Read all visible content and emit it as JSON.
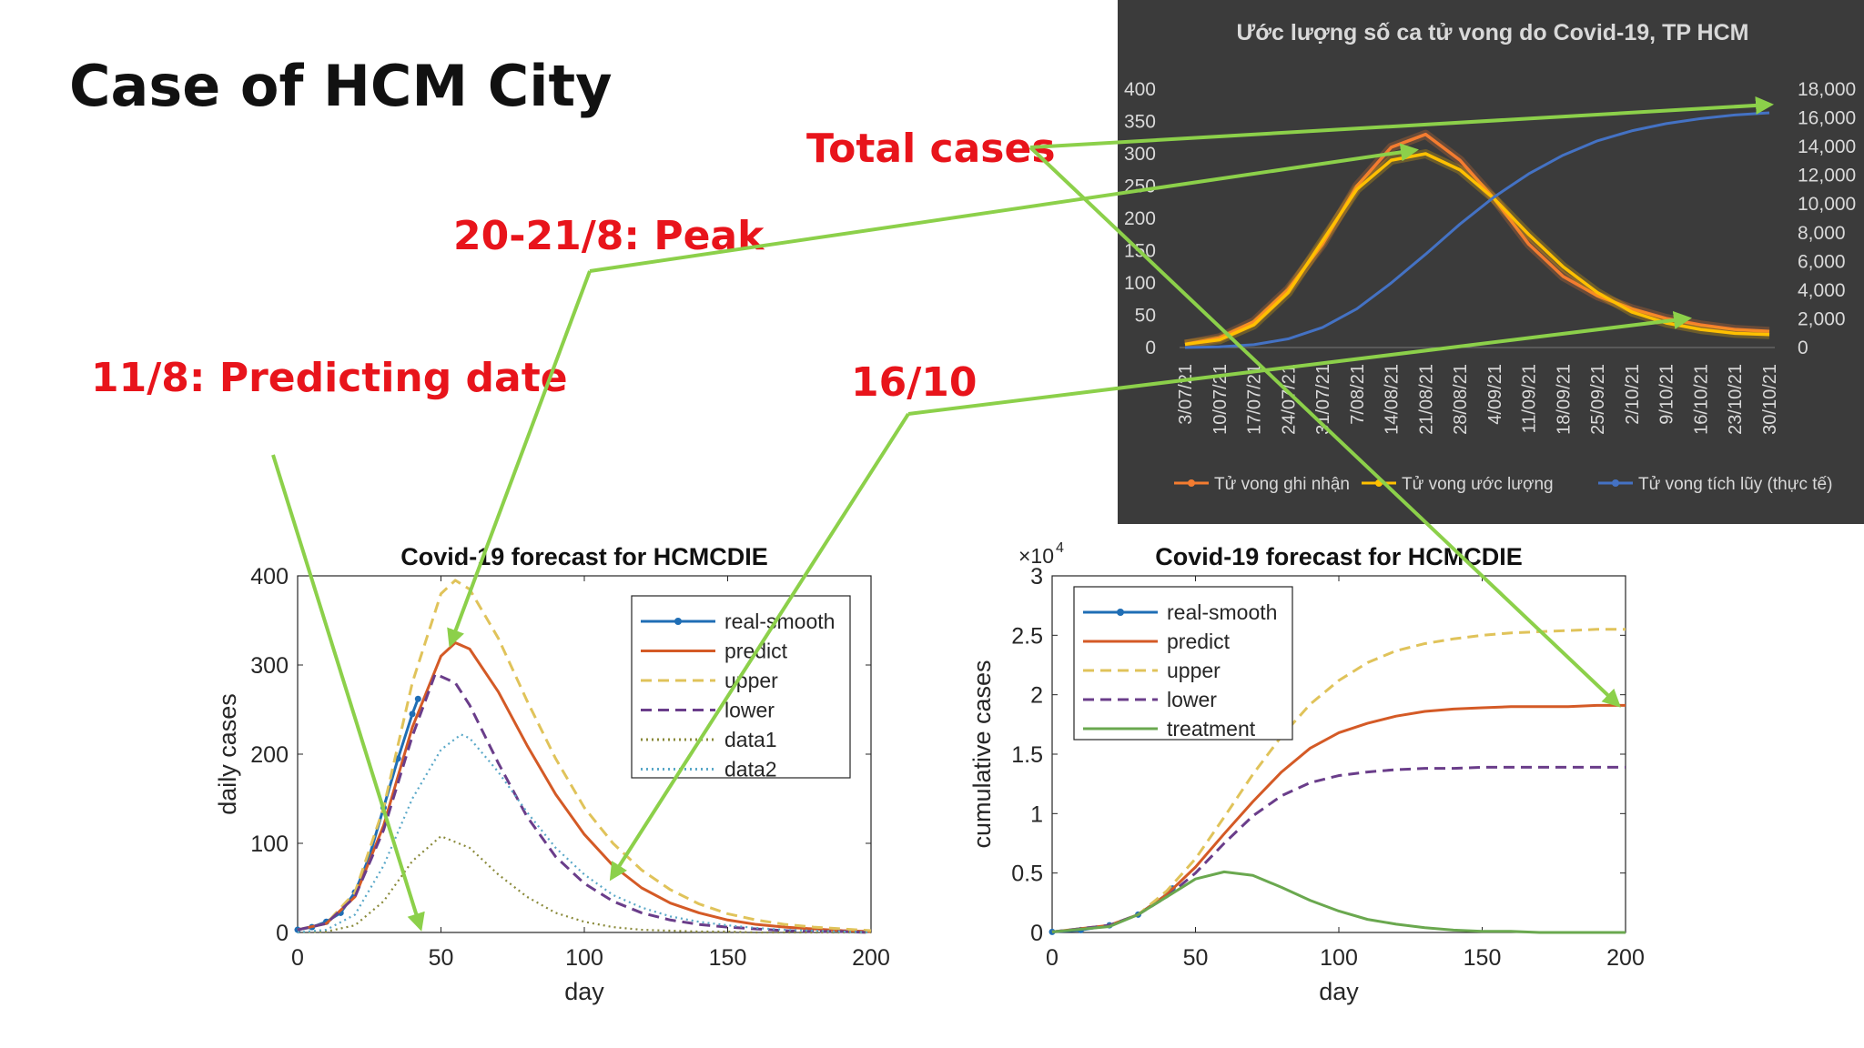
{
  "slide": {
    "title": "Case of HCM City",
    "annotations": {
      "total_cases": "Total cases",
      "peak": "20-21/8: Peak",
      "predicting_date": "11/8: Predicting date",
      "date_1610": "16/10"
    },
    "arrow_color": "#8cd04a",
    "label_color": "#e8141b"
  },
  "chart_data": [
    {
      "type": "line",
      "title": "Ước lượng số ca tử vong do Covid-19, TP HCM",
      "background": "#3b3b3b",
      "categories": [
        "3/07/21",
        "10/07/21",
        "17/07/21",
        "24/07/21",
        "31/07/21",
        "7/08/21",
        "14/08/21",
        "21/08/21",
        "28/08/21",
        "4/09/21",
        "11/09/21",
        "18/09/21",
        "25/09/21",
        "2/10/21",
        "9/10/21",
        "16/10/21",
        "23/10/21",
        "30/10/21"
      ],
      "y_left": {
        "ticks": [
          "400",
          "350",
          "300",
          "250",
          "200",
          "150",
          "100",
          "50",
          "0"
        ],
        "ylim": [
          0,
          400
        ]
      },
      "y_right": {
        "ticks": [
          "18,000",
          "16,000",
          "14,000",
          "12,000",
          "10,000",
          "8,000",
          "6,000",
          "4,000",
          "2,000",
          "0"
        ],
        "ylim": [
          0,
          18000
        ]
      },
      "series": [
        {
          "name": "Tử vong ghi nhận",
          "color": "#f47c30",
          "axis": "left",
          "values": [
            5,
            15,
            40,
            90,
            160,
            250,
            310,
            330,
            290,
            230,
            160,
            110,
            80,
            60,
            45,
            35,
            28,
            25
          ]
        },
        {
          "name": "Tử vong ước lượng",
          "color": "#ffc000",
          "axis": "left",
          "values": [
            5,
            12,
            35,
            85,
            165,
            245,
            290,
            300,
            275,
            230,
            175,
            125,
            85,
            55,
            38,
            28,
            22,
            20
          ]
        },
        {
          "name": "Tử vong tích lũy (thực tế)",
          "color": "#4472c4",
          "axis": "right",
          "values": [
            0,
            50,
            200,
            600,
            1400,
            2700,
            4500,
            6500,
            8600,
            10500,
            12100,
            13400,
            14400,
            15100,
            15600,
            15950,
            16200,
            16350
          ]
        }
      ],
      "legend": "bottom"
    },
    {
      "type": "line",
      "title": "Covid-19 forecast for HCMCDIE",
      "xlabel": "day",
      "ylabel": "daily cases",
      "xlim": [
        0,
        200
      ],
      "ylim": [
        0,
        400
      ],
      "x_ticks": [
        "0",
        "50",
        "100",
        "150",
        "200"
      ],
      "y_ticks": [
        "0",
        "100",
        "200",
        "300",
        "400"
      ],
      "series": [
        {
          "name": "real-smooth",
          "color": "#1f6eb5",
          "style": "solid-dots",
          "x": [
            0,
            5,
            10,
            15,
            20,
            25,
            30,
            35,
            40,
            42
          ],
          "values": [
            3,
            6,
            12,
            22,
            45,
            85,
            140,
            195,
            245,
            262
          ]
        },
        {
          "name": "predict",
          "color": "#d45a26",
          "style": "solid",
          "x": [
            0,
            10,
            20,
            30,
            40,
            50,
            55,
            60,
            70,
            80,
            90,
            100,
            110,
            120,
            130,
            140,
            150,
            160,
            170,
            180,
            190,
            200
          ],
          "values": [
            3,
            10,
            40,
            120,
            230,
            310,
            325,
            318,
            270,
            210,
            155,
            110,
            75,
            50,
            33,
            22,
            14,
            9,
            6,
            4,
            2,
            1
          ]
        },
        {
          "name": "upper",
          "color": "#e0c35a",
          "style": "dashed",
          "x": [
            0,
            10,
            20,
            30,
            40,
            50,
            55,
            60,
            70,
            80,
            90,
            100,
            110,
            120,
            130,
            140,
            150,
            160,
            170,
            180,
            190,
            200
          ],
          "values": [
            3,
            10,
            45,
            140,
            280,
            380,
            395,
            385,
            330,
            260,
            195,
            140,
            100,
            70,
            48,
            32,
            21,
            14,
            9,
            6,
            4,
            2
          ]
        },
        {
          "name": "lower",
          "color": "#6a3d8a",
          "style": "dashed",
          "x": [
            0,
            10,
            20,
            30,
            40,
            48,
            55,
            60,
            70,
            80,
            90,
            100,
            110,
            120,
            130,
            140,
            150,
            160,
            170,
            180,
            190,
            200
          ],
          "values": [
            3,
            10,
            40,
            115,
            220,
            290,
            280,
            255,
            190,
            130,
            85,
            55,
            35,
            22,
            14,
            9,
            6,
            4,
            2,
            1,
            1,
            0
          ]
        },
        {
          "name": "data1",
          "color": "#8a8a3a",
          "style": "dotted",
          "x": [
            0,
            10,
            20,
            30,
            40,
            50,
            60,
            70,
            80,
            90,
            100,
            110,
            120,
            130,
            140,
            150,
            160,
            170,
            180,
            190,
            200
          ],
          "values": [
            0,
            1,
            8,
            35,
            80,
            108,
            95,
            65,
            40,
            22,
            12,
            6,
            3,
            2,
            1,
            1,
            0,
            0,
            0,
            0,
            0
          ]
        },
        {
          "name": "data2",
          "color": "#5aa8c8",
          "style": "dotted",
          "x": [
            0,
            10,
            20,
            30,
            40,
            50,
            57,
            60,
            70,
            80,
            90,
            100,
            110,
            120,
            130,
            140,
            150,
            160,
            170,
            180,
            190,
            200
          ],
          "values": [
            0,
            3,
            20,
            75,
            150,
            205,
            222,
            218,
            180,
            135,
            95,
            65,
            42,
            28,
            18,
            12,
            8,
            5,
            3,
            2,
            1,
            0
          ]
        }
      ],
      "legend": "top-right"
    },
    {
      "type": "line",
      "title": "Covid-19 forecast for HCMCDIE",
      "xlabel": "day",
      "ylabel": "cumulative cases",
      "y_exponent": "×10",
      "y_exponent_power": "4",
      "xlim": [
        0,
        200
      ],
      "ylim": [
        0,
        3
      ],
      "x_ticks": [
        "0",
        "50",
        "100",
        "150",
        "200"
      ],
      "y_ticks": [
        "0",
        "0.5",
        "1",
        "1.5",
        "2",
        "2.5",
        "3"
      ],
      "series": [
        {
          "name": "real-smooth",
          "color": "#1f6eb5",
          "style": "solid-dots",
          "x": [
            0,
            10,
            20,
            30,
            40,
            42
          ],
          "values": [
            0.005,
            0.02,
            0.06,
            0.15,
            0.32,
            0.37
          ]
        },
        {
          "name": "predict",
          "color": "#d45a26",
          "style": "solid",
          "x": [
            0,
            20,
            30,
            40,
            50,
            60,
            70,
            80,
            90,
            100,
            110,
            120,
            130,
            140,
            150,
            160,
            170,
            180,
            190,
            200
          ],
          "values": [
            0.005,
            0.06,
            0.15,
            0.32,
            0.55,
            0.83,
            1.1,
            1.35,
            1.55,
            1.68,
            1.76,
            1.82,
            1.86,
            1.88,
            1.89,
            1.9,
            1.9,
            1.9,
            1.91,
            1.91
          ]
        },
        {
          "name": "upper",
          "color": "#e0c35a",
          "style": "dashed",
          "x": [
            0,
            20,
            30,
            40,
            50,
            60,
            70,
            80,
            90,
            100,
            110,
            120,
            130,
            140,
            150,
            160,
            170,
            180,
            190,
            200
          ],
          "values": [
            0.005,
            0.06,
            0.15,
            0.35,
            0.62,
            0.97,
            1.33,
            1.65,
            1.92,
            2.12,
            2.27,
            2.37,
            2.43,
            2.47,
            2.5,
            2.52,
            2.53,
            2.54,
            2.55,
            2.55
          ]
        },
        {
          "name": "lower",
          "color": "#6a3d8a",
          "style": "dashed",
          "x": [
            0,
            20,
            30,
            40,
            50,
            60,
            70,
            80,
            90,
            100,
            110,
            120,
            130,
            140,
            150,
            160,
            170,
            180,
            190,
            200
          ],
          "values": [
            0.005,
            0.06,
            0.15,
            0.3,
            0.5,
            0.75,
            0.98,
            1.15,
            1.26,
            1.32,
            1.35,
            1.37,
            1.38,
            1.38,
            1.39,
            1.39,
            1.39,
            1.39,
            1.39,
            1.39
          ]
        },
        {
          "name": "treatment",
          "color": "#6aa84f",
          "style": "solid",
          "x": [
            0,
            20,
            30,
            40,
            50,
            60,
            70,
            80,
            90,
            100,
            110,
            120,
            130,
            140,
            150,
            160,
            170,
            180,
            190,
            200
          ],
          "values": [
            0.005,
            0.05,
            0.15,
            0.3,
            0.45,
            0.51,
            0.48,
            0.38,
            0.27,
            0.18,
            0.11,
            0.07,
            0.04,
            0.02,
            0.01,
            0.01,
            0.0,
            0.0,
            0.0,
            0.0
          ]
        }
      ],
      "legend": "top-left"
    }
  ]
}
